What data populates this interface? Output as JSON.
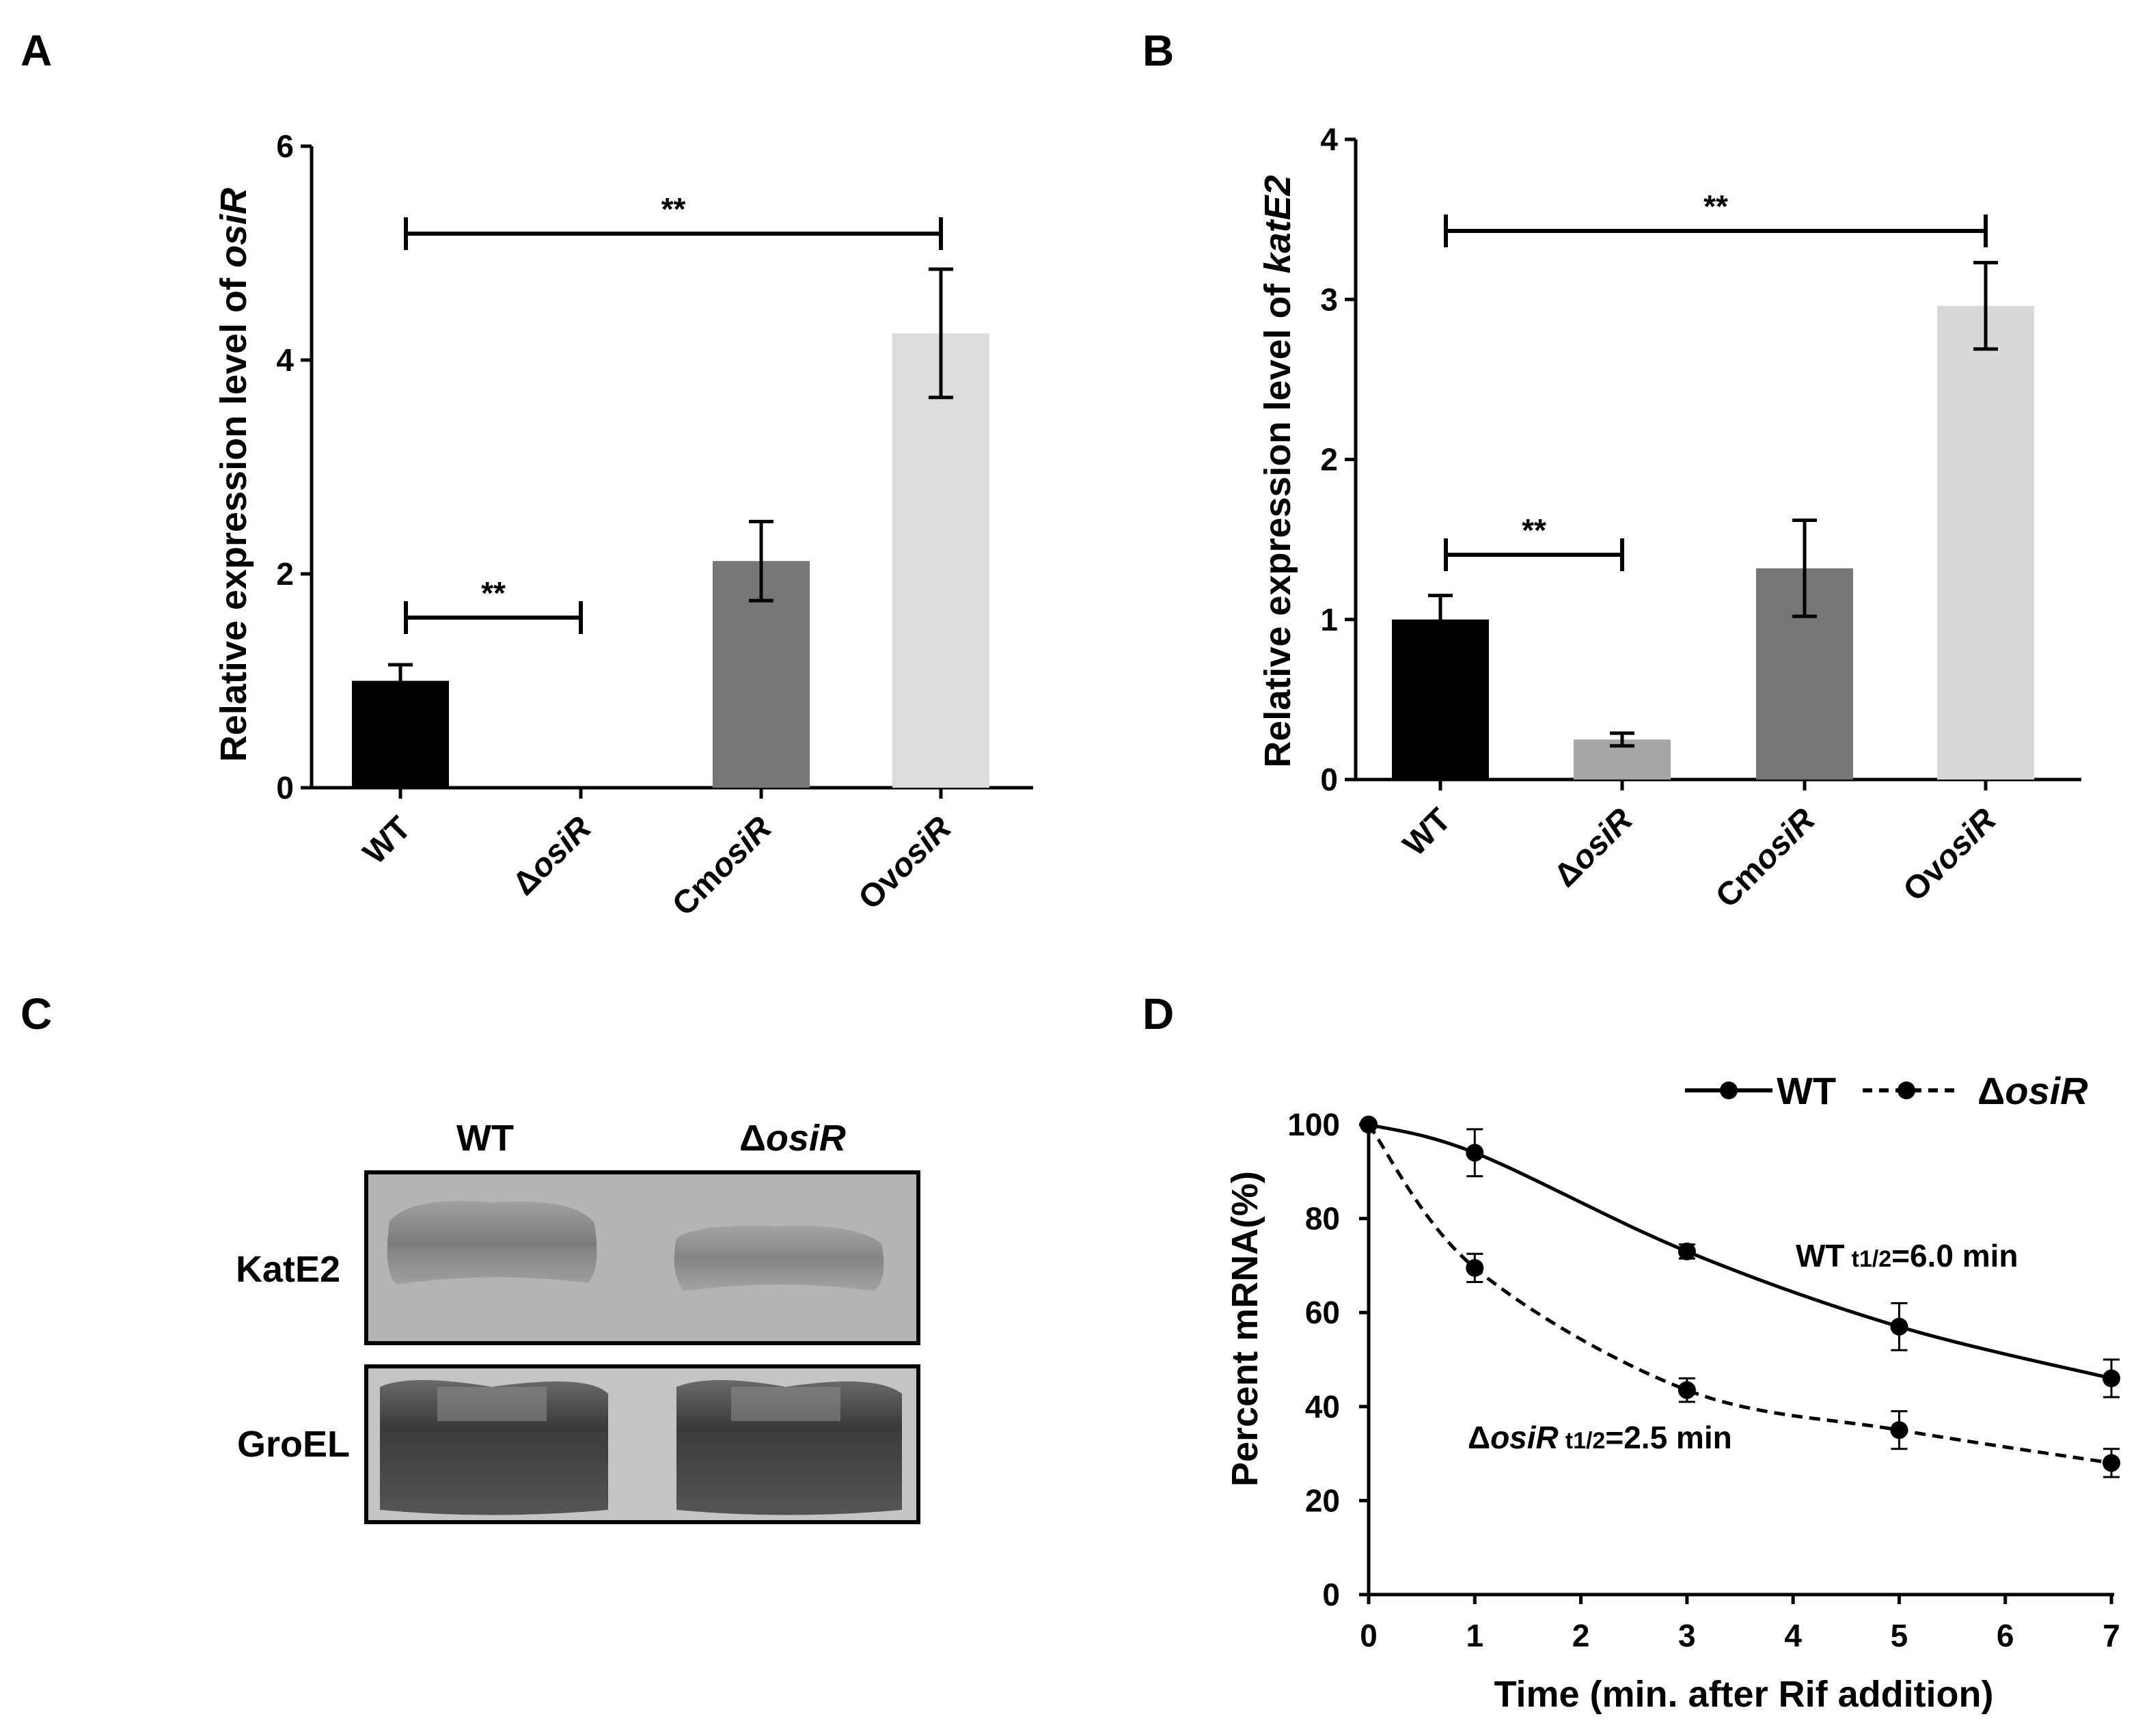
{
  "panels": {
    "A": "A",
    "B": "B",
    "C": "C",
    "D": "D"
  },
  "chart_data": [
    {
      "panel": "A",
      "type": "bar",
      "ylabel_prefix": "Relative expression level of ",
      "ylabel_gene": "osiR",
      "ylim": [
        0,
        6
      ],
      "yticks": [
        "0",
        "2",
        "4",
        "6"
      ],
      "categories": [
        {
          "prefix": "",
          "name": "WT",
          "italic": false
        },
        {
          "prefix": "Δ",
          "name": "osiR",
          "italic": true
        },
        {
          "prefix": "Cm",
          "name": "osiR",
          "italic": true
        },
        {
          "prefix": "Ov",
          "name": "osiR",
          "italic": true
        }
      ],
      "values": [
        1.0,
        0.0,
        2.12,
        4.25
      ],
      "errors": [
        0.15,
        0.0,
        0.37,
        0.6
      ],
      "colors": [
        "#000000",
        "#9a9a9a",
        "#767676",
        "#dcdcdc"
      ],
      "significance": [
        {
          "from": 0,
          "to": 1,
          "label": "**"
        },
        {
          "from": 0,
          "to": 3,
          "label": "**"
        }
      ]
    },
    {
      "panel": "B",
      "type": "bar",
      "ylabel_prefix": "Relative expression level of ",
      "ylabel_gene": "katE2",
      "ylim": [
        0,
        4
      ],
      "yticks": [
        "0",
        "1",
        "2",
        "3",
        "4"
      ],
      "categories": [
        {
          "prefix": "",
          "name": "WT",
          "italic": false
        },
        {
          "prefix": "Δ",
          "name": "osiR",
          "italic": true
        },
        {
          "prefix": "Cm",
          "name": "osiR",
          "italic": true
        },
        {
          "prefix": "Ov",
          "name": "osiR",
          "italic": true
        }
      ],
      "values": [
        1.0,
        0.25,
        1.32,
        2.96
      ],
      "errors": [
        0.15,
        0.04,
        0.3,
        0.27
      ],
      "colors": [
        "#000000",
        "#a6a6a6",
        "#767676",
        "#d8d8d8"
      ],
      "significance": [
        {
          "from": 0,
          "to": 1,
          "label": "**"
        },
        {
          "from": 0,
          "to": 3,
          "label": "**"
        }
      ]
    },
    {
      "panel": "D",
      "type": "line",
      "ylabel": "Percent mRNA(%)",
      "xlabel": "Time (min. after Rif addition)",
      "xlim": [
        0,
        7
      ],
      "ylim": [
        0,
        100
      ],
      "xticks": [
        "0",
        "1",
        "2",
        "3",
        "4",
        "5",
        "6",
        "7"
      ],
      "yticks": [
        "0",
        "20",
        "40",
        "60",
        "80",
        "100"
      ],
      "series": [
        {
          "name": "WT",
          "style": "solid",
          "x": [
            0,
            1,
            3,
            5,
            7
          ],
          "y": [
            100,
            94,
            73,
            57,
            46
          ],
          "err": [
            0,
            5,
            1.5,
            5,
            4
          ]
        },
        {
          "name": "ΔosiR",
          "style": "dashed",
          "x": [
            0,
            1,
            3,
            5,
            7
          ],
          "y": [
            100,
            69.5,
            43.5,
            35,
            28
          ],
          "err": [
            0,
            3,
            2.5,
            4,
            3
          ]
        }
      ],
      "legend": {
        "wt": "WT",
        "mut_prefix": "Δ",
        "mut_name": "osiR"
      },
      "annotations": {
        "wt_name": "WT",
        "wt_sub": "t1/2",
        "wt_val": "=6.0 min",
        "mut_prefix": "Δ",
        "mut_name": "osiR",
        "mut_sub": "t1/2",
        "mut_val": "=2.5 min"
      }
    }
  ],
  "blot": {
    "columns": {
      "wt": "WT",
      "mut_prefix": "Δ",
      "mut_name": "osiR"
    },
    "rows": [
      "KatE2",
      "GroEL"
    ]
  }
}
